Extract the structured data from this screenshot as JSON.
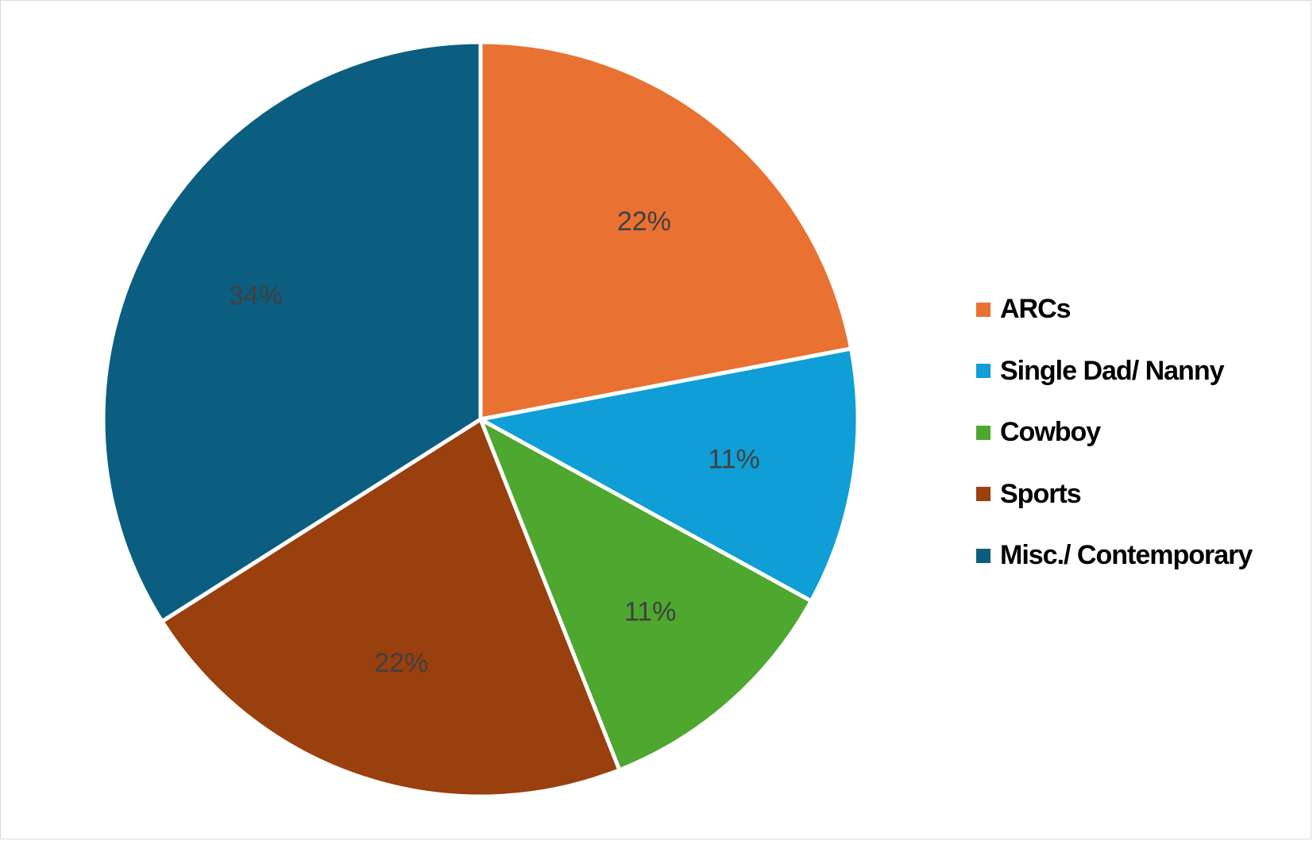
{
  "chart_data": {
    "type": "pie",
    "title": "",
    "categories": [
      "ARCs",
      "Single Dad/ Nanny",
      "Cowboy",
      "Sports",
      "Misc./ Contemporary"
    ],
    "values": [
      22,
      11,
      11,
      22,
      34
    ],
    "labels": [
      "22%",
      "11%",
      "11%",
      "22%",
      "34%"
    ],
    "colors": [
      "#E97132",
      "#0F9ED5",
      "#4EA72E",
      "#9A3F0E",
      "#0B5E80"
    ],
    "start_angle_deg": 0,
    "direction": "clockwise",
    "legend_position": "right",
    "unit": "%"
  }
}
